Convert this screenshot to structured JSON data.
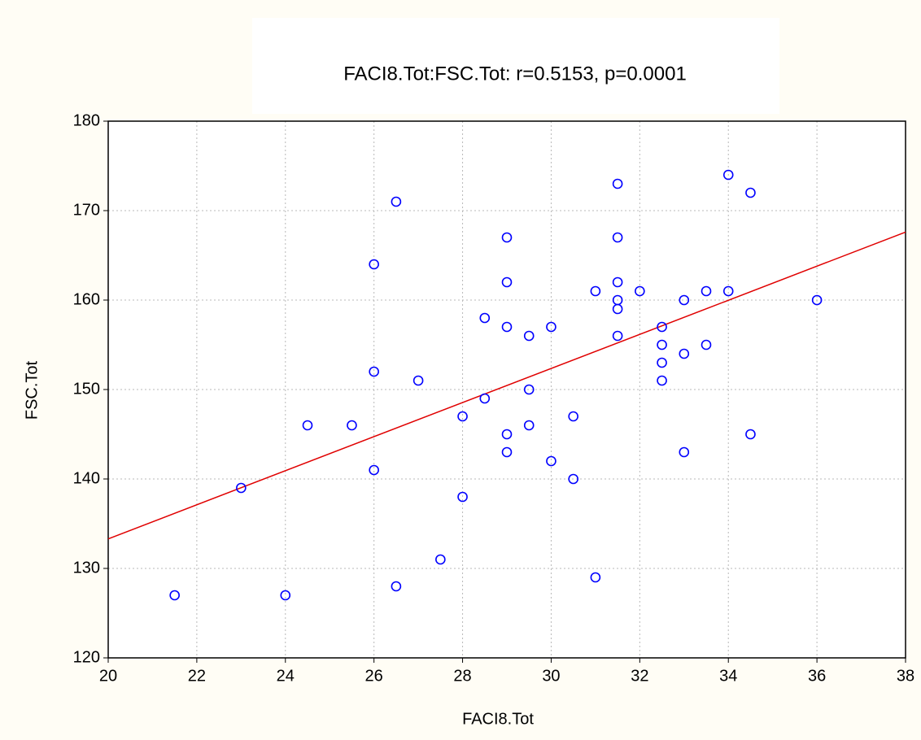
{
  "chart_data": {
    "type": "scatter",
    "title": "FACI8.Tot:FSC.Tot: r=0.5153, p=0.0001",
    "x_label": "FACI8.Tot",
    "y_label": "FSC.Tot",
    "x": [
      21.5,
      23,
      24,
      24.5,
      25.5,
      26,
      26,
      26,
      26.5,
      26.5,
      27,
      27.5,
      28,
      28,
      28.5,
      28.5,
      29,
      29,
      29,
      29,
      29,
      29.5,
      29.5,
      29.5,
      30,
      30,
      30.5,
      30.5,
      31,
      31,
      31.5,
      31.5,
      31.5,
      31.5,
      31.5,
      31.5,
      32,
      32.5,
      32.5,
      32.5,
      32.5,
      33,
      33,
      33,
      33.5,
      33.5,
      34,
      34,
      34.5,
      34.5,
      36
    ],
    "values": [
      127,
      139,
      127,
      146,
      146,
      164,
      152,
      141,
      171,
      128,
      151,
      131,
      147,
      138,
      158,
      149,
      167,
      162,
      157,
      145,
      143,
      156,
      150,
      146,
      157,
      142,
      147,
      140,
      161,
      129,
      173,
      167,
      162,
      160,
      159,
      156,
      161,
      157,
      155,
      153,
      151,
      160,
      154,
      143,
      161,
      155,
      174,
      161,
      172,
      145,
      160
    ],
    "color": "#0000ff",
    "fit": {
      "x": [
        20,
        38
      ],
      "values": [
        133.3,
        167.6
      ],
      "color": "#e00000"
    },
    "xlim": [
      20,
      38
    ],
    "xticks": [
      20,
      22,
      24,
      26,
      28,
      30,
      32,
      34,
      36,
      38
    ],
    "ylim": [
      120,
      180
    ],
    "yticks": [
      120,
      130,
      140,
      150,
      160,
      170,
      180
    ],
    "grid": true
  }
}
